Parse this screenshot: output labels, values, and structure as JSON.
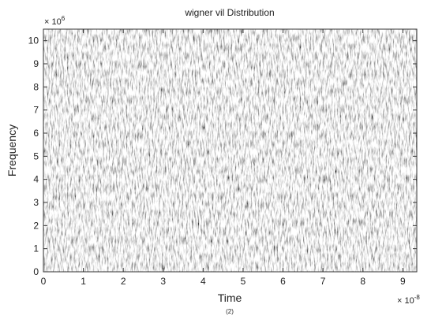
{
  "chart_data": {
    "type": "heatmap",
    "title": "wigner vil Distribution",
    "x_label": "Time",
    "y_label": "Frequency",
    "x_multiplier": {
      "base": "× 10",
      "exponent": "-8"
    },
    "y_multiplier": {
      "base": "× 10",
      "exponent": "6"
    },
    "xlim": [
      0,
      9.35
    ],
    "xticks": [
      0,
      1,
      2,
      3,
      4,
      5,
      6,
      7,
      8,
      9
    ],
    "ylim": [
      0,
      10.5
    ],
    "yticks": [
      0,
      1,
      2,
      3,
      4,
      5,
      6,
      7,
      8,
      9,
      10
    ],
    "caption": "(2)"
  }
}
